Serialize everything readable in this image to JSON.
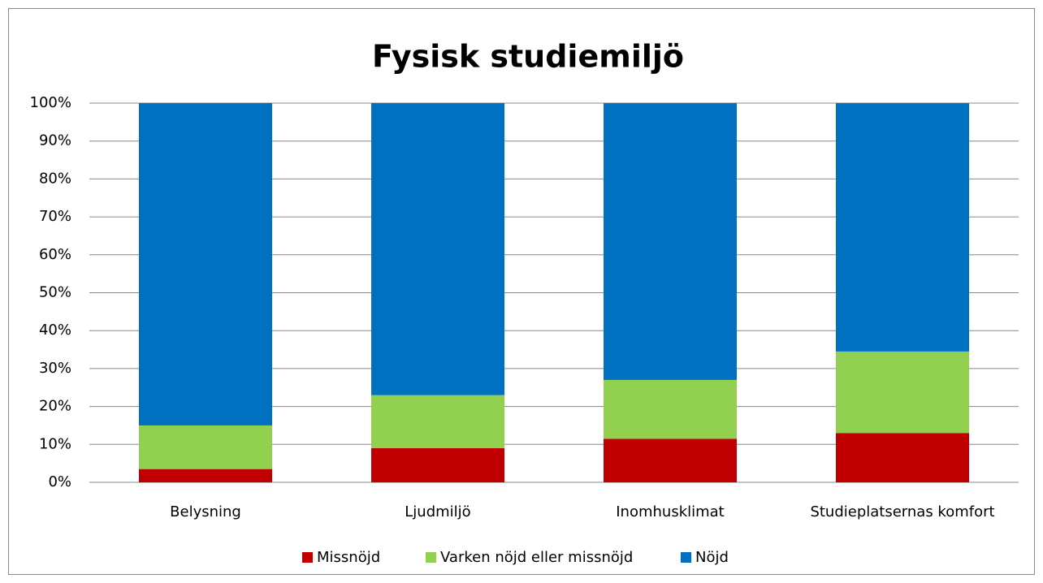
{
  "chart_data": {
    "type": "stacked_bar",
    "title": "Fysisk studiemiljö",
    "categories": [
      "Belysning",
      "Ljudmiljö",
      "Inomhusklimat",
      "Studieplatsernas komfort"
    ],
    "series": [
      {
        "name": "Missnöjd",
        "color": "#c00000",
        "values": [
          3.5,
          9,
          11.5,
          13
        ]
      },
      {
        "name": "Varken nöjd eller missnöjd",
        "color": "#92d050",
        "values": [
          11.5,
          14,
          15.5,
          21.5
        ]
      },
      {
        "name": "Nöjd",
        "color": "#0070c0",
        "values": [
          85,
          77,
          73,
          65.5
        ]
      }
    ],
    "ylim": [
      0,
      100
    ],
    "yticks": [
      {
        "value": 0,
        "label": "0%"
      },
      {
        "value": 10,
        "label": "10%"
      },
      {
        "value": 20,
        "label": "20%"
      },
      {
        "value": 30,
        "label": "30%"
      },
      {
        "value": 40,
        "label": "40%"
      },
      {
        "value": 50,
        "label": "50%"
      },
      {
        "value": 60,
        "label": "60%"
      },
      {
        "value": 70,
        "label": "70%"
      },
      {
        "value": 80,
        "label": "80%"
      },
      {
        "value": 90,
        "label": "90%"
      },
      {
        "value": 100,
        "label": "100%"
      }
    ],
    "grid": true,
    "legend": "bottom"
  }
}
